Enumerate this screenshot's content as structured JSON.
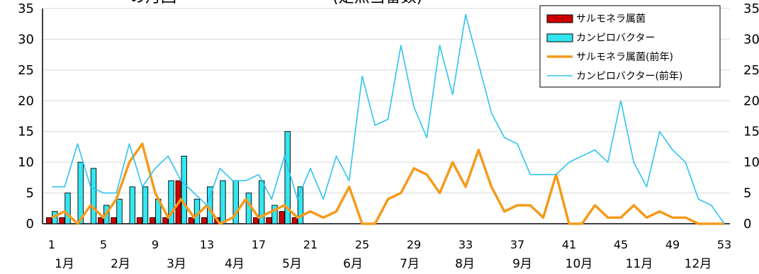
{
  "chart_data": {
    "type": "bar",
    "title": "・・・・の月回・・・・・・・・・・(定点当番数)",
    "x_ticks": [
      "1",
      "5",
      "9",
      "13",
      "17",
      "21",
      "25",
      "29",
      "33",
      "37",
      "41",
      "45",
      "49",
      "53"
    ],
    "months": [
      "1月",
      "2月",
      "3月",
      "4月",
      "5月",
      "6月",
      "7月",
      "8月",
      "9月",
      "10月",
      "11月",
      "12月"
    ],
    "ylim": [
      0,
      35
    ],
    "y_ticks": [
      0,
      5,
      10,
      15,
      20,
      25,
      30,
      35
    ],
    "legend_position": "top-right",
    "series": [
      {
        "name": "サルモネラ属菌",
        "kind": "bar",
        "color": "#cc0000",
        "x": [
          1,
          2,
          3,
          4,
          5,
          6,
          7,
          8,
          9,
          10,
          11,
          12,
          13,
          14,
          15,
          16,
          17,
          18,
          19,
          20
        ],
        "values": [
          1,
          1,
          0,
          0,
          1,
          1,
          0,
          1,
          1,
          1,
          7,
          1,
          1,
          1,
          0,
          0,
          1,
          1,
          2,
          1
        ]
      },
      {
        "name": "カンピロバクター",
        "kind": "bar",
        "color": "#33e6f0",
        "x": [
          1,
          2,
          3,
          4,
          5,
          6,
          7,
          8,
          9,
          10,
          11,
          12,
          13,
          14,
          15,
          16,
          17,
          18,
          19,
          20
        ],
        "values": [
          2,
          5,
          10,
          9,
          3,
          4,
          6,
          6,
          4,
          7,
          11,
          4,
          6,
          7,
          7,
          5,
          7,
          3,
          15,
          6
        ]
      },
      {
        "name": "サルモネラ属菌(前年)",
        "kind": "line",
        "color": "#f59a1c",
        "x": [
          1,
          2,
          3,
          4,
          5,
          6,
          7,
          8,
          9,
          10,
          11,
          12,
          13,
          14,
          15,
          16,
          17,
          18,
          19,
          20,
          21,
          22,
          23,
          24,
          25,
          26,
          27,
          28,
          29,
          30,
          31,
          32,
          33,
          34,
          35,
          36,
          37,
          38,
          39,
          40,
          41,
          42,
          43,
          44,
          45,
          46,
          47,
          48,
          49,
          50,
          51,
          52,
          53
        ],
        "values": [
          1,
          2,
          0,
          3,
          1,
          4,
          10,
          13,
          5,
          1,
          4,
          1,
          3,
          0,
          1,
          4,
          1,
          2,
          3,
          1,
          2,
          1,
          2,
          6,
          0,
          0,
          4,
          5,
          9,
          8,
          5,
          10,
          6,
          12,
          6,
          2,
          3,
          3,
          1,
          8,
          0,
          0,
          3,
          1,
          1,
          3,
          1,
          2,
          1,
          1,
          0,
          0,
          0
        ]
      },
      {
        "name": "カンピロバクター(前年)",
        "kind": "line",
        "color": "#2ec4f0",
        "x": [
          1,
          2,
          3,
          4,
          5,
          6,
          7,
          8,
          9,
          10,
          11,
          12,
          13,
          14,
          15,
          16,
          17,
          18,
          19,
          20,
          21,
          22,
          23,
          24,
          25,
          26,
          27,
          28,
          29,
          30,
          31,
          32,
          33,
          34,
          35,
          36,
          37,
          38,
          39,
          40,
          41,
          42,
          43,
          44,
          45,
          46,
          47,
          48,
          49,
          50,
          51,
          52,
          53
        ],
        "values": [
          6,
          6,
          13,
          6,
          5,
          5,
          13,
          6,
          9,
          11,
          7,
          5,
          3,
          9,
          7,
          7,
          8,
          4,
          11,
          4,
          9,
          4,
          11,
          7,
          24,
          16,
          17,
          29,
          19,
          14,
          29,
          21,
          34,
          26,
          18,
          14,
          13,
          8,
          8,
          8,
          10,
          11,
          12,
          10,
          20,
          10,
          6,
          15,
          12,
          10,
          4,
          3,
          0
        ]
      }
    ]
  }
}
